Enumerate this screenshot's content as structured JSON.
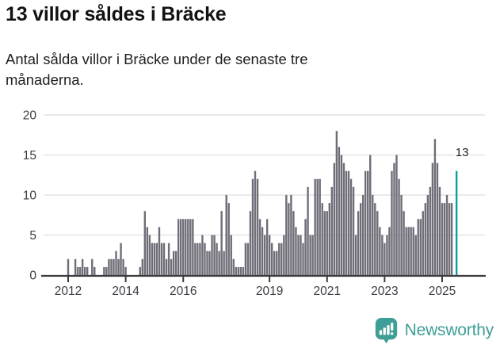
{
  "header": {
    "title": "13 villor såldes i Bräcke",
    "subtitle": "Antal sålda villor i Bräcke under de senaste tre månaderna."
  },
  "chart_data": {
    "type": "bar",
    "title": "13 villor såldes i Bräcke",
    "ylabel": "",
    "xlabel": "",
    "ylim": [
      0,
      20
    ],
    "yticks": [
      0,
      5,
      10,
      15,
      20
    ],
    "grid": true,
    "start_month": "2012-01",
    "end_month": "2025-07",
    "values": [
      2,
      0,
      0,
      2,
      1,
      1,
      2,
      1,
      1,
      0,
      2,
      1,
      0,
      0,
      0,
      1,
      1,
      2,
      2,
      2,
      3,
      2,
      4,
      2,
      1,
      0,
      0,
      0,
      0,
      0,
      1,
      2,
      8,
      6,
      5,
      4,
      4,
      4,
      6,
      4,
      4,
      2,
      4,
      2,
      3,
      3,
      7,
      7,
      7,
      7,
      7,
      7,
      7,
      4,
      4,
      4,
      5,
      4,
      3,
      3,
      5,
      5,
      4,
      3,
      8,
      3,
      10,
      9,
      5,
      2,
      1,
      1,
      1,
      1,
      4,
      4,
      8,
      12,
      13,
      12,
      7,
      6,
      5,
      7,
      5,
      4,
      3,
      3,
      4,
      4,
      5,
      10,
      9,
      10,
      8,
      6,
      5,
      5,
      4,
      7,
      11,
      5,
      5,
      12,
      12,
      12,
      9,
      8,
      8,
      9,
      11,
      14,
      18,
      16,
      15,
      14,
      13,
      13,
      12,
      11,
      5,
      8,
      9,
      10,
      13,
      13,
      15,
      10,
      9,
      8,
      6,
      5,
      4,
      5,
      6,
      13,
      14,
      15,
      12,
      10,
      8,
      6,
      6,
      6,
      6,
      5,
      7,
      7,
      8,
      9,
      10,
      11,
      14,
      17,
      14,
      11,
      9,
      9,
      10,
      9,
      9,
      0,
      13
    ],
    "xticks": [
      {
        "label": "2012",
        "month_index": 0
      },
      {
        "label": "2014",
        "month_index": 24
      },
      {
        "label": "2016",
        "month_index": 48
      },
      {
        "label": "2019",
        "month_index": 84
      },
      {
        "label": "2021",
        "month_index": 108
      },
      {
        "label": "2023",
        "month_index": 132
      },
      {
        "label": "2025",
        "month_index": 156
      }
    ],
    "highlight_last": true,
    "highlight_value": 13,
    "annotation": "13",
    "bar_color": "#6f6e78",
    "highlight_color": "#0d9ea2"
  },
  "footer": {
    "brand": "Newsworthy",
    "brand_color": "#3f9e96"
  }
}
